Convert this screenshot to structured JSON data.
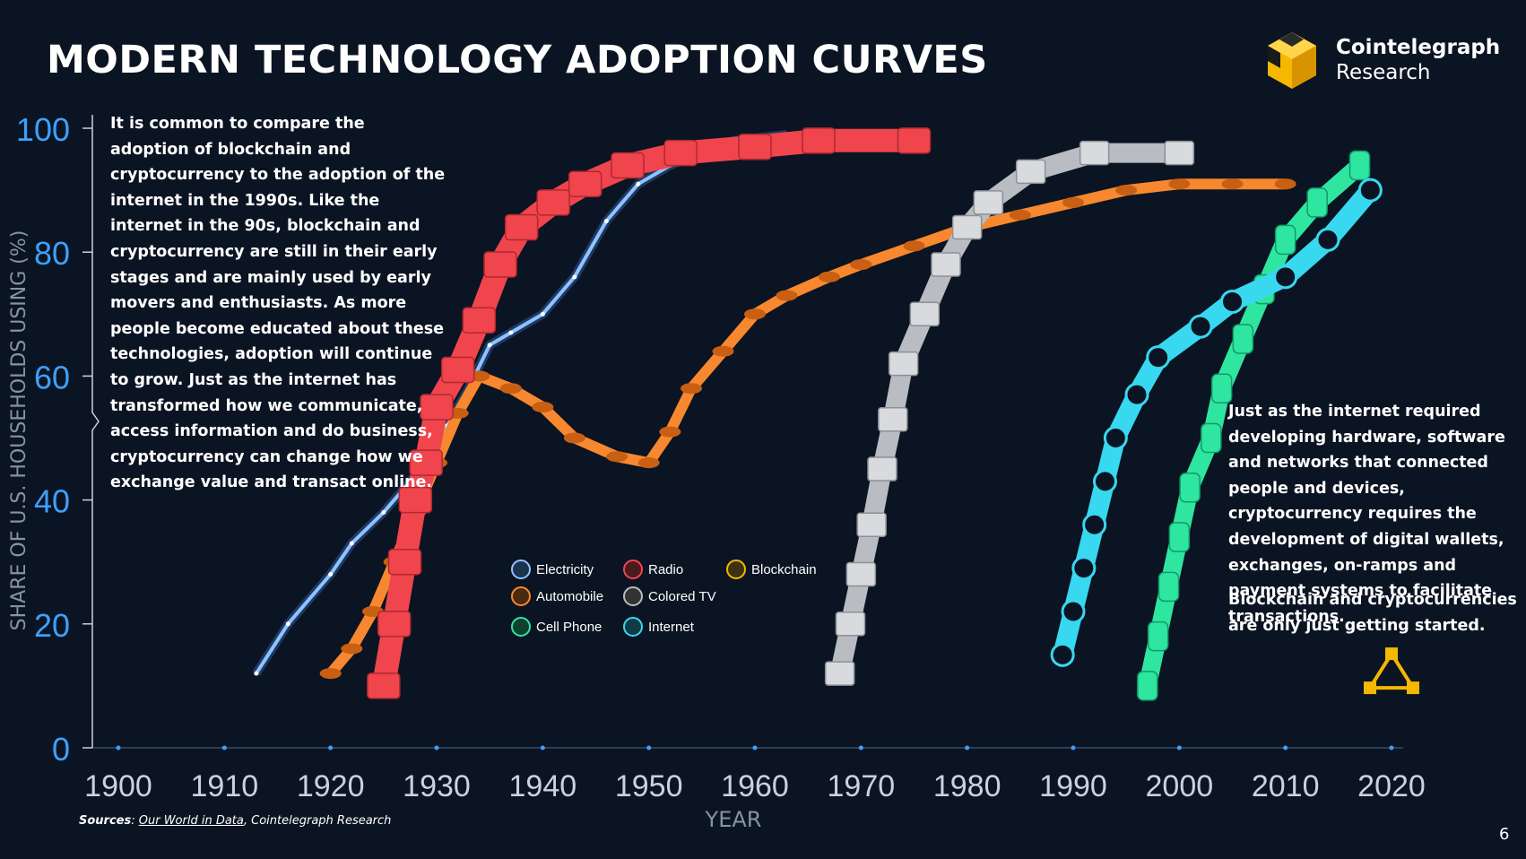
{
  "title": "MODERN TECHNOLOGY ADOPTION CURVES",
  "logo": {
    "name": "Cointelegraph",
    "sub": "Research"
  },
  "note_left": "It is common to compare the adoption of blockchain and cryptocurrency to the adoption of the internet in the 1990s. Like the internet in the 90s, blockchain and cryptocurrency are still in their early stages and are mainly used by early movers and enthusiasts. As more people become educated about these technologies, adoption will continue to grow. Just as the internet has transformed how we communicate, access information and do business, cryptocurrency can change how we exchange value and transact online.",
  "note_right_1": "Just as the internet required developing hardware, software and networks that connected people and devices, cryptocurrency requires the development of digital wallets, exchanges, on-ramps and payment systems to facilitate transactions.",
  "note_right_2": "Blockchain and cryptocurrencies are only just getting started.",
  "sources": {
    "label": "Sources",
    "link": "Our World in Data",
    "rest": ", Cointelegraph Research"
  },
  "page_number": "6",
  "colors": {
    "background": "#0b1422",
    "axis": "#3da0ff",
    "electricity": "#8fc3ff",
    "automobile": "#f7882f",
    "radio": "#f0454d",
    "colored_tv": "#b9bcc1",
    "cell_phone": "#2ee6a0",
    "internet": "#37d8f0",
    "blockchain": "#f5b800"
  },
  "chart_data": {
    "type": "line",
    "title": "",
    "xlabel": "YEAR",
    "ylabel": "SHARE OF U.S. HOUSEHOLDS USING (%)",
    "xlim": [
      1900,
      2020
    ],
    "ylim": [
      0,
      100
    ],
    "x_ticks": [
      "1900",
      "1910",
      "1920",
      "1930",
      "1940",
      "1950",
      "1960",
      "1970",
      "1980",
      "1990",
      "2000",
      "2010",
      "2020"
    ],
    "y_ticks": [
      "0",
      "20",
      "40",
      "60",
      "80",
      "100"
    ],
    "legend": [
      "Electricity",
      "Radio",
      "Blockchain",
      "Automobile",
      "Colored TV",
      "Cell Phone",
      "Internet"
    ],
    "legend_position": "center",
    "series": [
      {
        "name": "Electricity",
        "icon": "lightning-icon",
        "points": [
          [
            1913,
            12
          ],
          [
            1916,
            20
          ],
          [
            1920,
            28
          ],
          [
            1922,
            33
          ],
          [
            1925,
            38
          ],
          [
            1927,
            42
          ],
          [
            1929,
            46
          ],
          [
            1931,
            52
          ],
          [
            1933,
            58
          ],
          [
            1935,
            65
          ],
          [
            1937,
            67
          ],
          [
            1940,
            70
          ],
          [
            1943,
            76
          ],
          [
            1946,
            85
          ],
          [
            1949,
            91
          ],
          [
            1952,
            94
          ],
          [
            1955,
            96
          ],
          [
            1958,
            98
          ],
          [
            1963,
            99
          ]
        ]
      },
      {
        "name": "Automobile",
        "icon": "car-icon",
        "points": [
          [
            1920,
            12
          ],
          [
            1922,
            16
          ],
          [
            1924,
            22
          ],
          [
            1926,
            30
          ],
          [
            1928,
            38
          ],
          [
            1930,
            46
          ],
          [
            1932,
            54
          ],
          [
            1934,
            60
          ],
          [
            1937,
            58
          ],
          [
            1940,
            55
          ],
          [
            1943,
            50
          ],
          [
            1947,
            47
          ],
          [
            1950,
            46
          ],
          [
            1952,
            51
          ],
          [
            1954,
            58
          ],
          [
            1957,
            64
          ],
          [
            1960,
            70
          ],
          [
            1963,
            73
          ],
          [
            1967,
            76
          ],
          [
            1970,
            78
          ],
          [
            1975,
            81
          ],
          [
            1980,
            84
          ],
          [
            1985,
            86
          ],
          [
            1990,
            88
          ],
          [
            1995,
            90
          ],
          [
            2000,
            91
          ],
          [
            2005,
            91
          ],
          [
            2010,
            91
          ]
        ]
      },
      {
        "name": "Radio",
        "icon": "radio-icon",
        "points": [
          [
            1925,
            10
          ],
          [
            1926,
            20
          ],
          [
            1927,
            30
          ],
          [
            1928,
            40
          ],
          [
            1929,
            46
          ],
          [
            1930,
            55
          ],
          [
            1932,
            61
          ],
          [
            1934,
            69
          ],
          [
            1936,
            78
          ],
          [
            1938,
            84
          ],
          [
            1941,
            88
          ],
          [
            1944,
            91
          ],
          [
            1948,
            94
          ],
          [
            1953,
            96
          ],
          [
            1960,
            97
          ],
          [
            1966,
            98
          ],
          [
            1975,
            98
          ]
        ]
      },
      {
        "name": "Colored TV",
        "icon": "tv-icon",
        "points": [
          [
            1968,
            12
          ],
          [
            1969,
            20
          ],
          [
            1970,
            28
          ],
          [
            1971,
            36
          ],
          [
            1972,
            45
          ],
          [
            1973,
            53
          ],
          [
            1974,
            62
          ],
          [
            1976,
            70
          ],
          [
            1978,
            78
          ],
          [
            1980,
            84
          ],
          [
            1982,
            88
          ],
          [
            1986,
            93
          ],
          [
            1992,
            96
          ],
          [
            2000,
            96
          ]
        ]
      },
      {
        "name": "Cell Phone",
        "icon": "cell-phone-icon",
        "points": [
          [
            1997,
            10
          ],
          [
            1998,
            18
          ],
          [
            1999,
            26
          ],
          [
            2000,
            34
          ],
          [
            2001,
            42
          ],
          [
            2003,
            50
          ],
          [
            2004,
            58
          ],
          [
            2006,
            66
          ],
          [
            2008,
            74
          ],
          [
            2010,
            82
          ],
          [
            2013,
            88
          ],
          [
            2017,
            94
          ]
        ]
      },
      {
        "name": "Internet",
        "icon": "internet-icon",
        "points": [
          [
            1989,
            15
          ],
          [
            1990,
            22
          ],
          [
            1991,
            29
          ],
          [
            1992,
            36
          ],
          [
            1993,
            43
          ],
          [
            1994,
            50
          ],
          [
            1996,
            57
          ],
          [
            1998,
            63
          ],
          [
            2002,
            68
          ],
          [
            2005,
            72
          ],
          [
            2010,
            76
          ],
          [
            2014,
            82
          ],
          [
            2018,
            90
          ]
        ]
      },
      {
        "name": "Blockchain",
        "icon": "blockchain-icon",
        "points": [
          [
            2020,
            12
          ]
        ]
      }
    ]
  }
}
